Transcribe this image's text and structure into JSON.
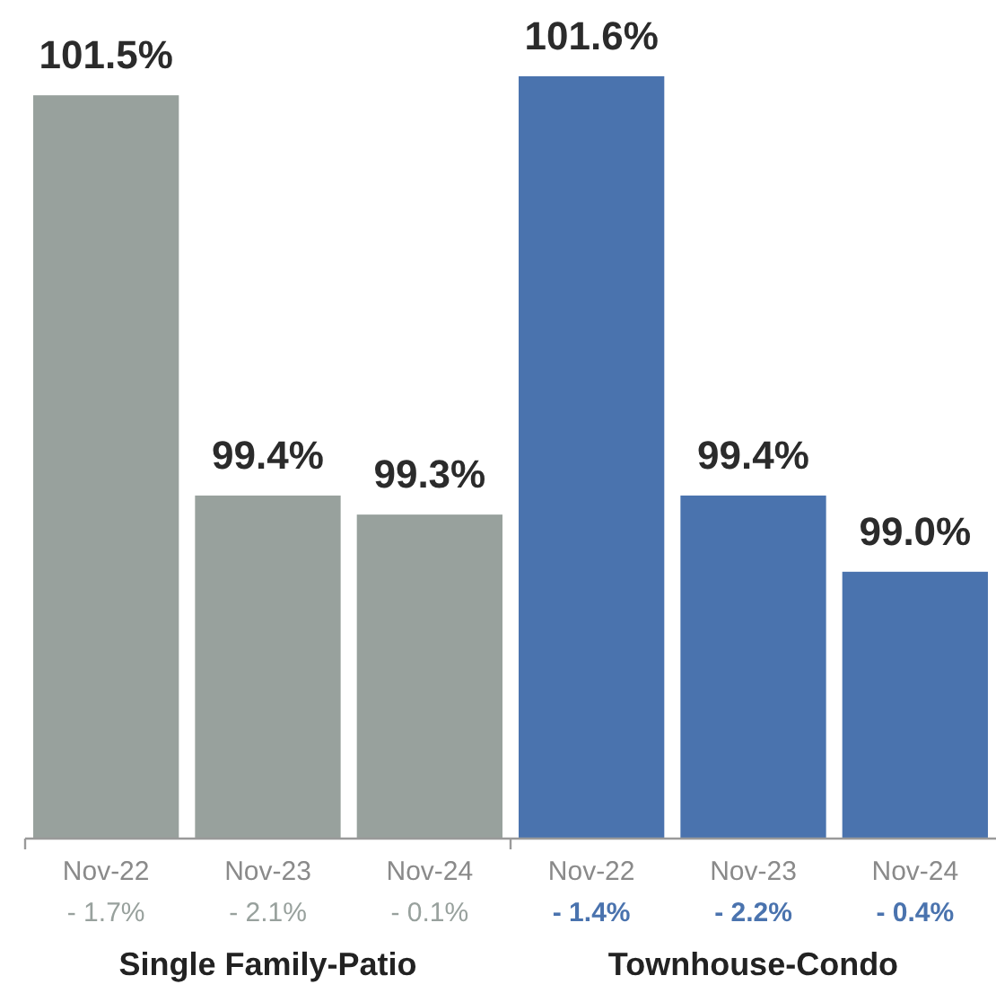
{
  "chart_data": [
    {
      "type": "bar",
      "xlabel": "Single Family-Patio",
      "tick_labels": "x",
      "categories": [
        "Nov-22\n- 1.7%",
        "Nov-23\n- 2.1%",
        "Nov-24\n- 0.1%"
      ],
      "values": [
        101.5,
        99.4,
        99.3
      ],
      "value_labels": [
        "101.5%",
        "99.4%",
        "99.3%"
      ],
      "color": "#98a19d",
      "ylim": [
        97.6,
        102
      ]
    },
    {
      "type": "bar",
      "xlabel": "Townhouse-Condo",
      "tick_labels": "x",
      "categories": [
        "Nov-22\n- 1.4%",
        "Nov-23\n- 2.2%",
        "Nov-24\n- 0.4%"
      ],
      "values": [
        101.6,
        99.4,
        99.0
      ],
      "value_labels": [
        "101.6%",
        "99.4%",
        "99.0%"
      ],
      "color": "#4a73ae",
      "ylim": [
        97.6,
        102
      ]
    }
  ]
}
